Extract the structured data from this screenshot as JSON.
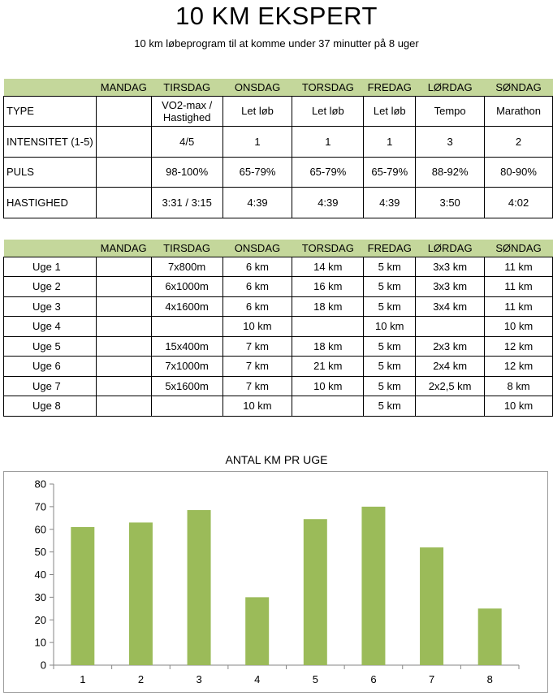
{
  "title": "10 KM EKSPERT",
  "subtitle": "10 km løbeprogram til at komme under 37 minutter på 8 uger",
  "days": [
    "",
    "MANDAG",
    "TIRSDAG",
    "ONSDAG",
    "TORSDAG",
    "FREDAG",
    "LØRDAG",
    "SØNDAG"
  ],
  "info_rows": [
    {
      "label": "TYPE",
      "cells": [
        "",
        "VO2-max / Hastighed",
        "Let løb",
        "Let løb",
        "Let løb",
        "Tempo",
        "Marathon"
      ]
    },
    {
      "label": "INTENSITET (1-5)",
      "cells": [
        "",
        "4/5",
        "1",
        "1",
        "1",
        "3",
        "2"
      ]
    },
    {
      "label": "PULS",
      "cells": [
        "",
        "98-100%",
        "65-79%",
        "65-79%",
        "65-79%",
        "88-92%",
        "80-90%"
      ]
    },
    {
      "label": "HASTIGHED",
      "cells": [
        "",
        "3:31 / 3:15",
        "4:39",
        "4:39",
        "4:39",
        "3:50",
        "4:02"
      ]
    }
  ],
  "week_rows": [
    {
      "label": "Uge 1",
      "cells": [
        "",
        "7x800m",
        "6 km",
        "14 km",
        "5 km",
        "3x3 km",
        "11 km"
      ]
    },
    {
      "label": "Uge 2",
      "cells": [
        "",
        "6x1000m",
        "6 km",
        "16 km",
        "5 km",
        "3x3 km",
        "11 km"
      ]
    },
    {
      "label": "Uge 3",
      "cells": [
        "",
        "4x1600m",
        "6 km",
        "18 km",
        "5 km",
        "3x4 km",
        "11 km"
      ]
    },
    {
      "label": "Uge 4",
      "cells": [
        "",
        "",
        "10 km",
        "",
        "10 km",
        "",
        "10 km"
      ]
    },
    {
      "label": "Uge 5",
      "cells": [
        "",
        "15x400m",
        "7 km",
        "18 km",
        "5 km",
        "2x3 km",
        "12 km"
      ]
    },
    {
      "label": "Uge 6",
      "cells": [
        "",
        "7x1000m",
        "7 km",
        "21 km",
        "5 km",
        "2x4 km",
        "12 km"
      ]
    },
    {
      "label": "Uge 7",
      "cells": [
        "",
        "5x1600m",
        "7 km",
        "10 km",
        "5 km",
        "2x2,5 km",
        "8 km"
      ]
    },
    {
      "label": "Uge 8",
      "cells": [
        "",
        "",
        "10 km",
        "",
        "5 km",
        "",
        "10 km"
      ]
    }
  ],
  "chart_data": {
    "type": "bar",
    "title": "ANTAL KM PR UGE",
    "categories": [
      "1",
      "2",
      "3",
      "4",
      "5",
      "6",
      "7",
      "8"
    ],
    "values": [
      61,
      63,
      68.5,
      30,
      64.5,
      70,
      52,
      25
    ],
    "yticks": [
      "0",
      "10",
      "20",
      "30",
      "40",
      "50",
      "60",
      "70",
      "80"
    ],
    "ylim": [
      0,
      80
    ],
    "xlabel": "",
    "ylabel": "",
    "grid": false,
    "bar_color": "#9bbb59"
  }
}
